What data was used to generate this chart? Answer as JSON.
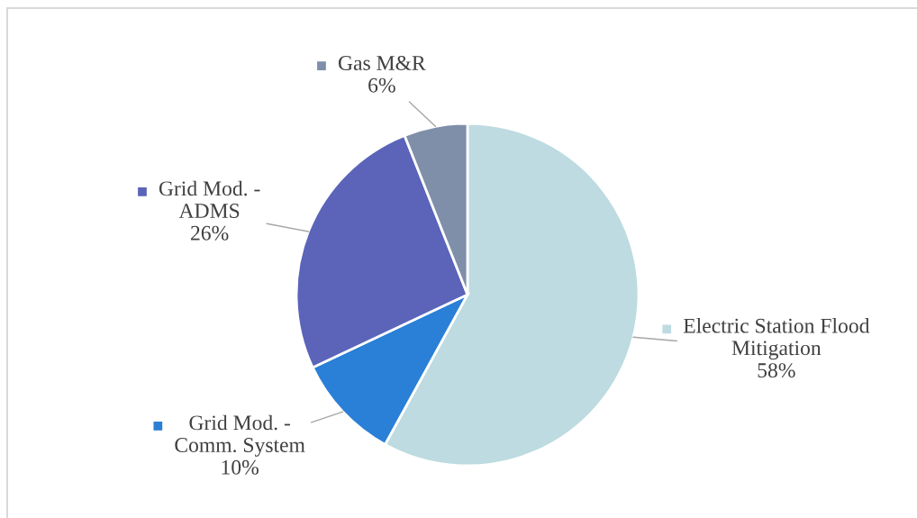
{
  "chart_data": {
    "type": "pie",
    "categories": [
      "Electric Station Flood\nMitigation",
      "Grid Mod. -\nComm. System",
      "Grid Mod. -\nADMS",
      "Gas M&R"
    ],
    "values": [
      58,
      10,
      26,
      6
    ],
    "value_labels": [
      "58%",
      "10%",
      "26%",
      "6%"
    ],
    "colors": [
      "#bddbe0",
      "#2a7fd6",
      "#5b64b9",
      "#7f8fa9"
    ],
    "legend": "top right"
  }
}
